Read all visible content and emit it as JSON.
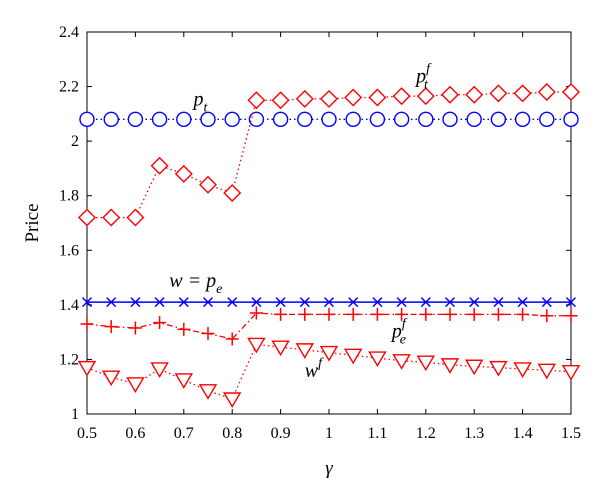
{
  "chart_data": {
    "type": "line",
    "xlabel": "γ",
    "ylabel": "Price",
    "xlim": [
      0.5,
      1.5
    ],
    "ylim": [
      1.0,
      2.4
    ],
    "xticks": [
      "0.5",
      "0.6",
      "0.7",
      "0.8",
      "0.9",
      "1",
      "1.1",
      "1.2",
      "1.3",
      "1.4",
      "1.5"
    ],
    "yticks": [
      "1",
      "1.2",
      "1.4",
      "1.6",
      "1.8",
      "2",
      "2.2",
      "2.4"
    ],
    "x": [
      0.5,
      0.55,
      0.6,
      0.65,
      0.7,
      0.75,
      0.8,
      0.85,
      0.9,
      0.95,
      1.0,
      1.05,
      1.1,
      1.15,
      1.2,
      1.25,
      1.3,
      1.35,
      1.4,
      1.45,
      1.5
    ],
    "series": [
      {
        "key": "pt",
        "color": "#0000ff",
        "marker": "circle",
        "linestyle": "dotted",
        "values": [
          2.08,
          2.08,
          2.08,
          2.08,
          2.08,
          2.08,
          2.08,
          2.08,
          2.08,
          2.08,
          2.08,
          2.08,
          2.08,
          2.08,
          2.08,
          2.08,
          2.08,
          2.08,
          2.08,
          2.08,
          2.08
        ]
      },
      {
        "key": "ptf",
        "color": "#ff0000",
        "marker": "diamond",
        "linestyle": "dotted",
        "values": [
          1.72,
          1.72,
          1.72,
          1.91,
          1.88,
          1.84,
          1.81,
          2.15,
          2.15,
          2.155,
          2.155,
          2.16,
          2.16,
          2.165,
          2.165,
          2.17,
          2.17,
          2.175,
          2.175,
          2.18,
          2.18
        ]
      },
      {
        "key": "w",
        "color": "#0000ff",
        "marker": "x",
        "linestyle": "solid",
        "values": [
          1.41,
          1.41,
          1.41,
          1.41,
          1.41,
          1.41,
          1.41,
          1.41,
          1.41,
          1.41,
          1.41,
          1.41,
          1.41,
          1.41,
          1.41,
          1.41,
          1.41,
          1.41,
          1.41,
          1.41,
          1.41
        ]
      },
      {
        "key": "pef",
        "color": "#ff0000",
        "marker": "plus",
        "linestyle": "dashdot",
        "values": [
          1.33,
          1.32,
          1.315,
          1.335,
          1.31,
          1.295,
          1.275,
          1.37,
          1.365,
          1.365,
          1.365,
          1.365,
          1.365,
          1.365,
          1.365,
          1.365,
          1.365,
          1.365,
          1.365,
          1.36,
          1.36
        ]
      },
      {
        "key": "wf",
        "color": "#ff0000",
        "marker": "triangle-down",
        "linestyle": "dotted",
        "values": [
          1.17,
          1.135,
          1.11,
          1.165,
          1.125,
          1.085,
          1.055,
          1.255,
          1.245,
          1.235,
          1.225,
          1.215,
          1.205,
          1.195,
          1.19,
          1.18,
          1.175,
          1.17,
          1.165,
          1.16,
          1.155
        ]
      }
    ],
    "annotations": [
      {
        "key": "pt",
        "x": 0.72,
        "y": 2.13,
        "base": "p",
        "sub": "t",
        "sup": ""
      },
      {
        "key": "ptf",
        "x": 1.18,
        "y": 2.215,
        "base": "p",
        "sub": "t",
        "sup": "f"
      },
      {
        "key": "w",
        "x": 0.67,
        "y": 1.465,
        "base": "w = p",
        "sub": "e",
        "sup": ""
      },
      {
        "key": "pef",
        "x": 1.13,
        "y": 1.28,
        "base": "p",
        "sub": "e",
        "sup": "f"
      },
      {
        "key": "wf",
        "x": 0.95,
        "y": 1.135,
        "base": "w",
        "sub": "",
        "sup": "f"
      }
    ]
  }
}
